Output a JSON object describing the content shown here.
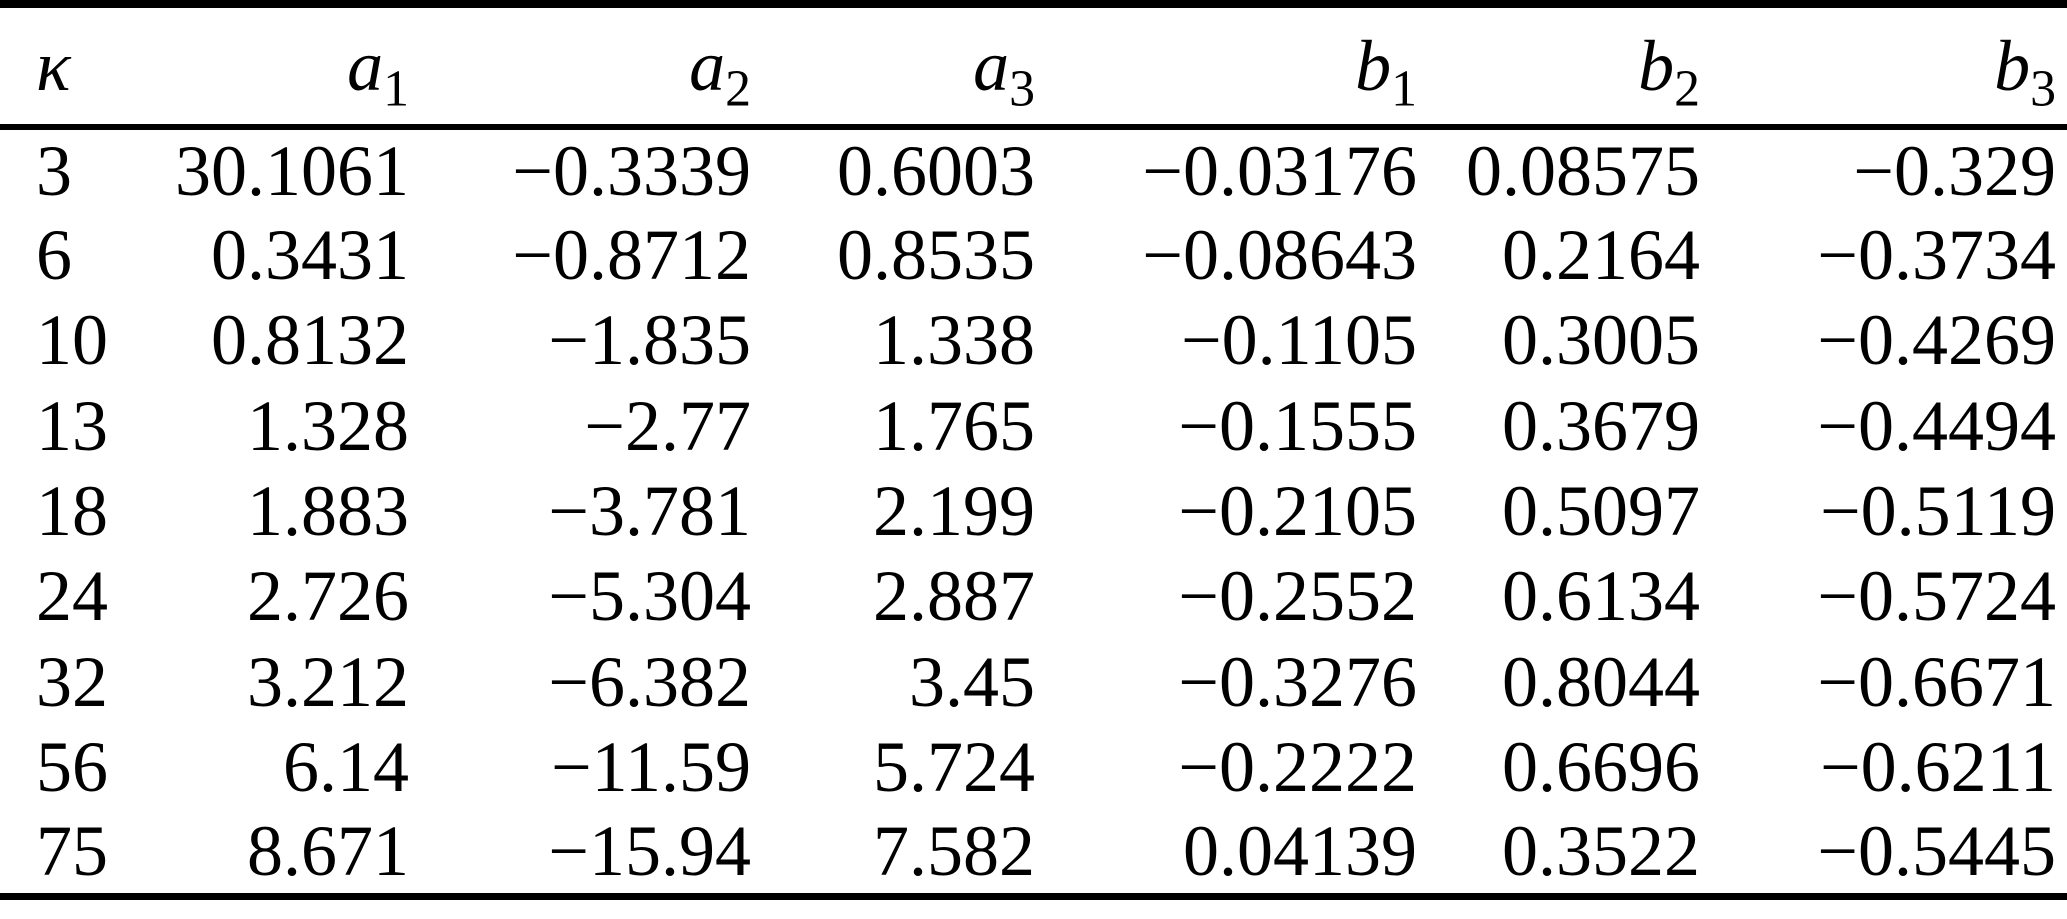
{
  "table": {
    "columns": [
      {
        "base": "κ",
        "sub": ""
      },
      {
        "base": "a",
        "sub": "1"
      },
      {
        "base": "a",
        "sub": "2"
      },
      {
        "base": "a",
        "sub": "3"
      },
      {
        "base": "b",
        "sub": "1"
      },
      {
        "base": "b",
        "sub": "2"
      },
      {
        "base": "b",
        "sub": "3"
      }
    ],
    "rows": [
      [
        "3",
        "30.1061",
        "−0.3339",
        "0.6003",
        "−0.03176",
        "0.08575",
        "−0.329"
      ],
      [
        "6",
        "0.3431",
        "−0.8712",
        "0.8535",
        "−0.08643",
        "0.2164",
        "−0.3734"
      ],
      [
        "10",
        "0.8132",
        "−1.835",
        "1.338",
        "−0.1105",
        "0.3005",
        "−0.4269"
      ],
      [
        "13",
        "1.328",
        "−2.77",
        "1.765",
        "−0.1555",
        "0.3679",
        "−0.4494"
      ],
      [
        "18",
        "1.883",
        "−3.781",
        "2.199",
        "−0.2105",
        "0.5097",
        "−0.5119"
      ],
      [
        "24",
        "2.726",
        "−5.304",
        "2.887",
        "−0.2552",
        "0.6134",
        "−0.5724"
      ],
      [
        "32",
        "3.212",
        "−6.382",
        "3.45",
        "−0.3276",
        "0.8044",
        "−0.6671"
      ],
      [
        "56",
        "6.14",
        "−11.59",
        "5.724",
        "−0.2222",
        "0.6696",
        "−0.6211"
      ],
      [
        "75",
        "8.671",
        "−15.94",
        "7.582",
        "0.04139",
        "0.3522",
        "−0.5445"
      ]
    ]
  },
  "chart_data": {
    "type": "table",
    "title": "",
    "columns": [
      "κ",
      "a1",
      "a2",
      "a3",
      "b1",
      "b2",
      "b3"
    ],
    "rows": [
      [
        3,
        30.1061,
        -0.3339,
        0.6003,
        -0.03176,
        0.08575,
        -0.329
      ],
      [
        6,
        0.3431,
        -0.8712,
        0.8535,
        -0.08643,
        0.2164,
        -0.3734
      ],
      [
        10,
        0.8132,
        -1.835,
        1.338,
        -0.1105,
        0.3005,
        -0.4269
      ],
      [
        13,
        1.328,
        -2.77,
        1.765,
        -0.1555,
        0.3679,
        -0.4494
      ],
      [
        18,
        1.883,
        -3.781,
        2.199,
        -0.2105,
        0.5097,
        -0.5119
      ],
      [
        24,
        2.726,
        -5.304,
        2.887,
        -0.2552,
        0.6134,
        -0.5724
      ],
      [
        32,
        3.212,
        -6.382,
        3.45,
        -0.3276,
        0.8044,
        -0.6671
      ],
      [
        56,
        6.14,
        -11.59,
        5.724,
        -0.2222,
        0.6696,
        -0.6211
      ],
      [
        75,
        8.671,
        -15.94,
        7.582,
        0.04139,
        0.3522,
        -0.5445
      ]
    ],
    "colors": {
      "text": "#000000",
      "background": "#ffffff",
      "rules": "#000000"
    },
    "layout": {
      "first_column_align": "left",
      "numeric_columns_align": "right",
      "rules": [
        "top",
        "below-header",
        "bottom"
      ]
    }
  }
}
